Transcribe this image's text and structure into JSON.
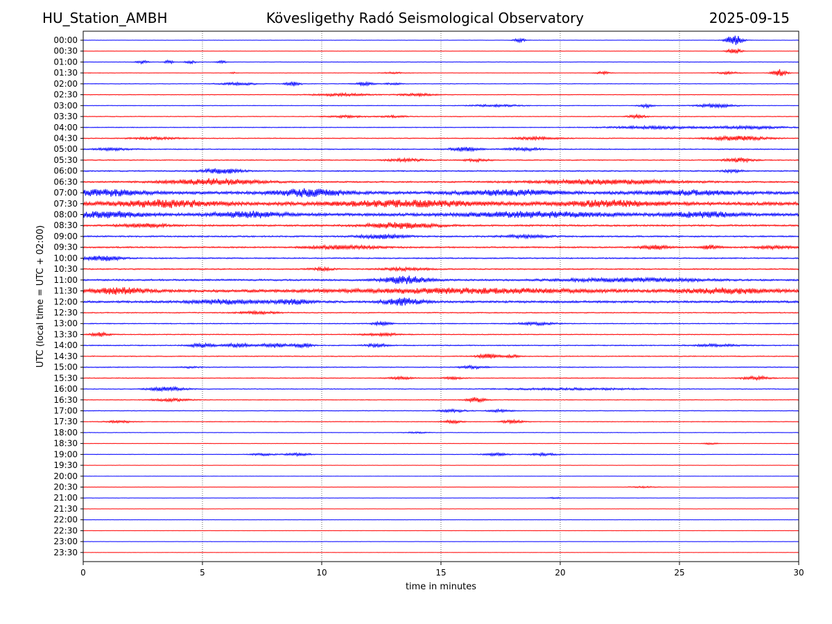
{
  "header": {
    "station": "HU_Station_AMBH",
    "observatory": "Kövesligethy Radó Seismological Observatory",
    "date": "2025-09-15"
  },
  "chart_data": {
    "type": "line",
    "title": "Kövesligethy Radó Seismological Observatory",
    "xlabel": "time in minutes",
    "ylabel": "UTC (local time = UTC + 02:00)",
    "xlim": [
      0,
      30
    ],
    "xticks": [
      0,
      5,
      10,
      15,
      20,
      25,
      30
    ],
    "grid": "vertical dotted lines at 5-minute intervals",
    "colors": {
      "even_rows": "#0000ff",
      "odd_rows": "#ff0000",
      "grid": "#000000"
    },
    "rows": [
      {
        "label": "00:00",
        "base": 0.08,
        "events": [
          [
            18.3,
            0.25,
            0.8
          ],
          [
            27.3,
            0.35,
            2.4
          ]
        ]
      },
      {
        "label": "00:30",
        "base": 0.08,
        "events": [
          [
            27.3,
            0.3,
            1.2
          ]
        ]
      },
      {
        "label": "01:00",
        "base": 0.1,
        "events": [
          [
            2.5,
            0.25,
            0.7
          ],
          [
            3.6,
            0.2,
            0.7
          ],
          [
            4.5,
            0.25,
            0.6
          ],
          [
            5.8,
            0.2,
            0.6
          ]
        ]
      },
      {
        "label": "01:30",
        "base": 0.1,
        "events": [
          [
            6.3,
            0.1,
            0.3
          ],
          [
            13,
            0.5,
            0.3
          ],
          [
            21.8,
            0.3,
            0.6
          ],
          [
            27,
            0.5,
            0.5
          ],
          [
            29.2,
            0.3,
            1.6
          ]
        ]
      },
      {
        "label": "02:00",
        "base": 0.12,
        "events": [
          [
            6.5,
            0.8,
            0.6
          ],
          [
            8.8,
            0.3,
            1.2
          ],
          [
            11.8,
            0.4,
            0.8
          ],
          [
            13,
            0.4,
            0.4
          ]
        ]
      },
      {
        "label": "02:30",
        "base": 0.12,
        "events": [
          [
            10.8,
            1.2,
            0.6
          ],
          [
            14,
            0.8,
            0.6
          ]
        ]
      },
      {
        "label": "03:00",
        "base": 0.12,
        "events": [
          [
            17.3,
            1,
            0.5
          ],
          [
            23.6,
            0.3,
            0.8
          ],
          [
            26.5,
            0.8,
            0.8
          ]
        ]
      },
      {
        "label": "03:30",
        "base": 0.14,
        "events": [
          [
            11,
            0.8,
            0.5
          ],
          [
            13,
            0.6,
            0.4
          ],
          [
            23.2,
            0.4,
            0.8
          ]
        ]
      },
      {
        "label": "04:00",
        "base": 0.15,
        "events": [
          [
            24,
            2,
            0.6
          ],
          [
            28,
            1.5,
            0.6
          ]
        ]
      },
      {
        "label": "04:30",
        "base": 0.18,
        "events": [
          [
            3,
            1,
            0.5
          ],
          [
            19,
            1,
            0.6
          ],
          [
            27.5,
            1.2,
            1
          ]
        ]
      },
      {
        "label": "05:00",
        "base": 0.2,
        "events": [
          [
            1.2,
            0.8,
            0.5
          ],
          [
            16,
            0.6,
            0.9
          ],
          [
            18.5,
            0.8,
            0.6
          ]
        ]
      },
      {
        "label": "05:30",
        "base": 0.2,
        "events": [
          [
            13.5,
            0.8,
            0.6
          ],
          [
            16.5,
            0.5,
            0.6
          ],
          [
            27.5,
            0.6,
            0.9
          ]
        ]
      },
      {
        "label": "06:00",
        "base": 0.25,
        "events": [
          [
            5.8,
            0.8,
            1.2
          ],
          [
            27.2,
            0.4,
            0.6
          ]
        ]
      },
      {
        "label": "06:30",
        "base": 0.3,
        "events": [
          [
            5.5,
            2,
            1.3
          ],
          [
            22,
            3,
            1
          ]
        ]
      },
      {
        "label": "07:00",
        "base": 0.6,
        "events": [
          [
            1,
            1.5,
            1.2
          ],
          [
            9.5,
            1.5,
            1.4
          ],
          [
            18,
            2,
            1
          ],
          [
            25.5,
            2,
            0.8
          ]
        ]
      },
      {
        "label": "07:30",
        "base": 0.7,
        "events": [
          [
            3.5,
            2,
            1.3
          ],
          [
            13.5,
            3,
            1.1
          ],
          [
            22,
            2,
            1.1
          ]
        ]
      },
      {
        "label": "08:00",
        "base": 0.6,
        "events": [
          [
            1,
            1.5,
            1.2
          ],
          [
            7,
            1.5,
            1.1
          ],
          [
            19,
            3,
            1
          ],
          [
            26,
            1.5,
            1
          ]
        ]
      },
      {
        "label": "08:30",
        "base": 0.35,
        "events": [
          [
            2.5,
            1,
            0.8
          ],
          [
            13.3,
            1.5,
            1.2
          ]
        ]
      },
      {
        "label": "09:00",
        "base": 0.3,
        "events": [
          [
            12.5,
            1,
            0.9
          ],
          [
            18.5,
            1,
            0.6
          ]
        ]
      },
      {
        "label": "09:30",
        "base": 0.3,
        "events": [
          [
            11,
            1.5,
            0.8
          ],
          [
            24,
            0.6,
            0.9
          ],
          [
            26.3,
            0.4,
            0.8
          ],
          [
            29,
            0.8,
            0.6
          ]
        ]
      },
      {
        "label": "10:00",
        "base": 0.25,
        "events": [
          [
            0.8,
            0.8,
            1.1
          ]
        ]
      },
      {
        "label": "10:30",
        "base": 0.25,
        "events": [
          [
            10,
            0.5,
            0.6
          ],
          [
            13.5,
            1,
            0.6
          ]
        ]
      },
      {
        "label": "11:00",
        "base": 0.35,
        "events": [
          [
            13.5,
            1,
            1.6
          ],
          [
            23,
            3,
            0.8
          ]
        ]
      },
      {
        "label": "11:30",
        "base": 0.55,
        "events": [
          [
            1.5,
            1.2,
            1.2
          ],
          [
            16,
            5,
            0.9
          ],
          [
            27,
            2,
            1
          ]
        ]
      },
      {
        "label": "12:00",
        "base": 0.45,
        "events": [
          [
            6,
            1.5,
            0.9
          ],
          [
            8.8,
            0.8,
            1
          ],
          [
            13.4,
            0.8,
            1.5
          ]
        ]
      },
      {
        "label": "12:30",
        "base": 0.2,
        "events": [
          [
            7.3,
            0.8,
            0.6
          ]
        ]
      },
      {
        "label": "13:00",
        "base": 0.18,
        "events": [
          [
            12.5,
            0.4,
            0.8
          ],
          [
            19,
            0.8,
            0.6
          ]
        ]
      },
      {
        "label": "13:30",
        "base": 0.18,
        "events": [
          [
            0.7,
            0.4,
            0.9
          ],
          [
            12.5,
            0.8,
            0.6
          ]
        ]
      },
      {
        "label": "14:00",
        "base": 0.2,
        "events": [
          [
            5,
            0.6,
            0.8
          ],
          [
            6.5,
            0.5,
            0.9
          ],
          [
            8,
            0.6,
            0.9
          ],
          [
            9.2,
            0.4,
            0.9
          ],
          [
            12.3,
            0.5,
            0.8
          ],
          [
            26.5,
            1,
            0.5
          ]
        ]
      },
      {
        "label": "14:30",
        "base": 0.18,
        "events": [
          [
            17,
            0.5,
            1
          ],
          [
            18,
            0.3,
            0.6
          ]
        ]
      },
      {
        "label": "15:00",
        "base": 0.18,
        "events": [
          [
            16.3,
            0.6,
            0.6
          ],
          [
            4.5,
            0.4,
            0.3
          ]
        ]
      },
      {
        "label": "15:30",
        "base": 0.16,
        "events": [
          [
            13.3,
            0.5,
            0.6
          ],
          [
            15.5,
            0.4,
            0.5
          ],
          [
            28.2,
            0.6,
            0.8
          ]
        ]
      },
      {
        "label": "16:00",
        "base": 0.16,
        "events": [
          [
            3.5,
            0.8,
            0.9
          ],
          [
            20.5,
            3,
            0.4
          ]
        ]
      },
      {
        "label": "16:30",
        "base": 0.14,
        "events": [
          [
            3.7,
            0.8,
            0.6
          ],
          [
            16.5,
            0.4,
            1.1
          ]
        ]
      },
      {
        "label": "17:00",
        "base": 0.14,
        "events": [
          [
            15.5,
            0.6,
            0.6
          ],
          [
            17.5,
            0.5,
            0.6
          ]
        ]
      },
      {
        "label": "17:30",
        "base": 0.14,
        "events": [
          [
            1.5,
            0.6,
            0.5
          ],
          [
            15.5,
            0.4,
            0.7
          ],
          [
            18,
            0.5,
            0.7
          ]
        ]
      },
      {
        "label": "18:00",
        "base": 0.1,
        "events": [
          [
            14,
            0.5,
            0.3
          ]
        ]
      },
      {
        "label": "18:30",
        "base": 0.08,
        "events": [
          [
            26.3,
            0.3,
            0.4
          ]
        ]
      },
      {
        "label": "19:00",
        "base": 0.1,
        "events": [
          [
            7.5,
            0.5,
            0.5
          ],
          [
            9,
            0.6,
            0.6
          ],
          [
            17.3,
            0.6,
            0.6
          ],
          [
            19.3,
            0.6,
            0.6
          ]
        ]
      },
      {
        "label": "19:30",
        "base": 0.07,
        "events": []
      },
      {
        "label": "20:00",
        "base": 0.07,
        "events": []
      },
      {
        "label": "20:30",
        "base": 0.08,
        "events": [
          [
            23.5,
            0.6,
            0.3
          ]
        ]
      },
      {
        "label": "21:00",
        "base": 0.07,
        "events": [
          [
            19.8,
            0.3,
            0.3
          ]
        ]
      },
      {
        "label": "21:30",
        "base": 0.06,
        "events": []
      },
      {
        "label": "22:00",
        "base": 0.06,
        "events": []
      },
      {
        "label": "22:30",
        "base": 0.06,
        "events": []
      },
      {
        "label": "23:00",
        "base": 0.06,
        "events": []
      },
      {
        "label": "23:30",
        "base": 0.06,
        "events": []
      }
    ]
  }
}
